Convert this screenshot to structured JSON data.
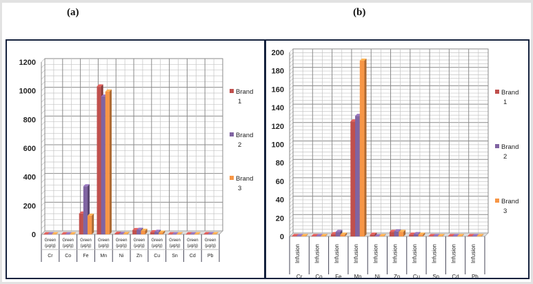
{
  "panels": [
    {
      "label": "(a)"
    },
    {
      "label": "(b)"
    }
  ],
  "colors": {
    "Brand 1": "#c0504d",
    "Brand 2": "#8064a2",
    "Brand 3": "#f79646"
  },
  "chart_data": [
    {
      "type": "bar",
      "style": "3d-clustered-column",
      "categories": [
        "Cr",
        "Co",
        "Fe",
        "Mn",
        "Ni",
        "Zn",
        "Cu",
        "Sn",
        "Cd",
        "Pb"
      ],
      "category_sublabel": "Green (µg/g)",
      "ylim": [
        0,
        1200
      ],
      "yticks": [
        0,
        200,
        400,
        600,
        800,
        1000,
        1200
      ],
      "grid": true,
      "legend": "right",
      "legend_entries": [
        [
          "Brand",
          "1"
        ],
        [
          "Brand",
          "2"
        ],
        [
          "Brand",
          "3"
        ]
      ],
      "series": [
        {
          "name": "Brand 1",
          "values": [
            1,
            1,
            145,
            1030,
            5,
            30,
            15,
            1,
            1,
            2
          ]
        },
        {
          "name": "Brand 2",
          "values": [
            1,
            1,
            335,
            960,
            3,
            32,
            18,
            1,
            1,
            2
          ]
        },
        {
          "name": "Brand 3",
          "values": [
            1,
            1,
            130,
            995,
            3,
            25,
            12,
            1,
            1,
            2
          ]
        }
      ]
    },
    {
      "type": "bar",
      "style": "3d-clustered-column",
      "categories": [
        "Cr",
        "Co",
        "Fe",
        "Mn",
        "Ni",
        "Zn",
        "Cu",
        "Sn",
        "Cd",
        "Pb"
      ],
      "category_sublabel": "Infusion",
      "ylim": [
        0,
        200
      ],
      "yticks": [
        0,
        20,
        40,
        60,
        80,
        100,
        120,
        140,
        160,
        180,
        200
      ],
      "grid": true,
      "legend": "right",
      "legend_entries": [
        [
          "Brand",
          "1"
        ],
        [
          "Brand",
          "2"
        ],
        [
          "Brand",
          "3"
        ]
      ],
      "series": [
        {
          "name": "Brand 1",
          "values": [
            0.5,
            0.5,
            2.5,
            125,
            2,
            5,
            2,
            0.5,
            0.5,
            0.5
          ]
        },
        {
          "name": "Brand 2",
          "values": [
            0.5,
            0.5,
            5,
            131,
            0.3,
            5.5,
            2.5,
            0.5,
            0.5,
            0.5
          ]
        },
        {
          "name": "Brand 3",
          "values": [
            0.5,
            0.5,
            2,
            191,
            0.5,
            5,
            2,
            0.5,
            0.5,
            0.5
          ]
        }
      ]
    }
  ]
}
